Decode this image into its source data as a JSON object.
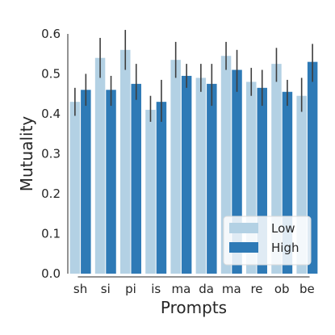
{
  "chart_data": {
    "type": "bar",
    "xlabel": "Prompts",
    "ylabel": "Mutuality",
    "ylim": [
      0.0,
      0.6
    ],
    "yticks": [
      "0.0",
      "0.1",
      "0.2",
      "0.3",
      "0.4",
      "0.5",
      "0.6"
    ],
    "categories": [
      "sh",
      "si",
      "pi",
      "is",
      "ma",
      "da",
      "ma",
      "re",
      "ob",
      "be"
    ],
    "legend_position": "bottom-right",
    "grid": false,
    "series": [
      {
        "name": "Low",
        "color": "#b3d1e4",
        "values": [
          0.43,
          0.54,
          0.56,
          0.41,
          0.535,
          0.49,
          0.545,
          0.48,
          0.525,
          0.445
        ],
        "err_low": [
          0.395,
          0.49,
          0.51,
          0.38,
          0.49,
          0.455,
          0.51,
          0.445,
          0.48,
          0.405
        ],
        "err_high": [
          0.465,
          0.59,
          0.61,
          0.445,
          0.58,
          0.525,
          0.58,
          0.515,
          0.565,
          0.49
        ]
      },
      {
        "name": "High",
        "color": "#2e7ab6",
        "values": [
          0.46,
          0.46,
          0.475,
          0.43,
          0.495,
          0.475,
          0.51,
          0.465,
          0.455,
          0.53
        ],
        "err_low": [
          0.42,
          0.42,
          0.435,
          0.38,
          0.465,
          0.42,
          0.455,
          0.42,
          0.42,
          0.48
        ],
        "err_high": [
          0.5,
          0.495,
          0.525,
          0.485,
          0.525,
          0.525,
          0.56,
          0.51,
          0.485,
          0.575
        ]
      }
    ]
  }
}
